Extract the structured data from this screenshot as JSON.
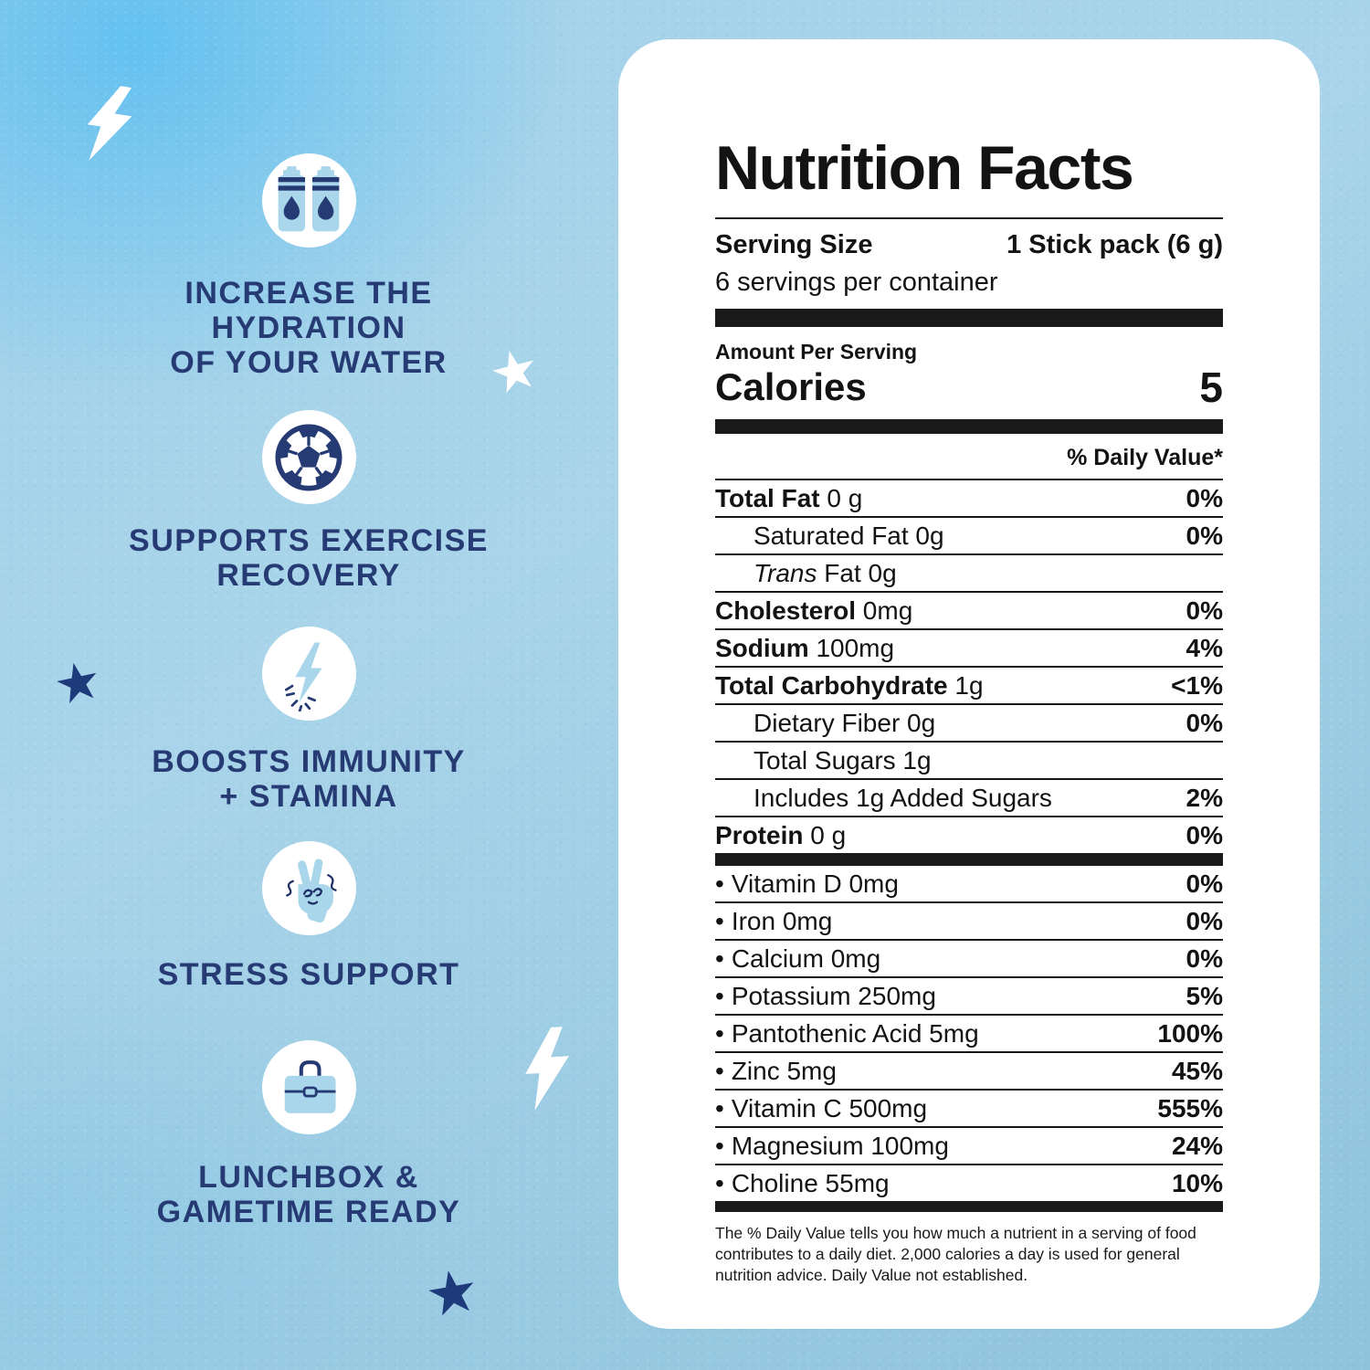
{
  "colors": {
    "background_blue": "#a6d2e8",
    "panel_white": "#ffffff",
    "navy": "#263a73",
    "label_black": "#131313",
    "icon_light_blue": "#a9d6ea"
  },
  "benefits": {
    "items": [
      {
        "icon": "water-bottles",
        "label": "INCREASE THE\nHYDRATION\nOF YOUR WATER"
      },
      {
        "icon": "soccer-ball",
        "label": "SUPPORTS EXERCISE\nRECOVERY"
      },
      {
        "icon": "lightning-bolt",
        "label": "BOOSTS IMMUNITY\n+ STAMINA"
      },
      {
        "icon": "peace-hand",
        "label": "STRESS SUPPORT"
      },
      {
        "icon": "lunchbox",
        "label": "LUNCHBOX &\nGAMETIME READY"
      }
    ]
  },
  "label": {
    "title": "Nutrition Facts",
    "serving_size_label": "Serving Size",
    "serving_size_value": "1 Stick pack (6 g)",
    "servings_per_container": "6 servings per container",
    "amount_per_serving": "Amount Per Serving",
    "calories_label": "Calories",
    "calories_value": "5",
    "daily_value_header": "% Daily Value*",
    "bullet": "•",
    "rows": [
      {
        "name": "Total Fat",
        "amount": "0 g",
        "dv": "0%",
        "bold_name": true,
        "indent": 0
      },
      {
        "name": "Saturated Fat",
        "amount": "0g",
        "dv": "0%",
        "bold_name": false,
        "indent": 1
      },
      {
        "name": "Trans Fat",
        "amount": "0g",
        "dv": "",
        "bold_name": false,
        "indent": 1,
        "italic_first_word": true
      },
      {
        "name": "Cholesterol",
        "amount": "0mg",
        "dv": "0%",
        "bold_name": true,
        "indent": 0
      },
      {
        "name": "Sodium",
        "amount": "100mg",
        "dv": "4%",
        "bold_name": true,
        "indent": 0
      },
      {
        "name": "Total Carbohydrate",
        "amount": "1g",
        "dv": "<1%",
        "bold_name": true,
        "indent": 0
      },
      {
        "name": "Dietary Fiber",
        "amount": "0g",
        "dv": "0%",
        "bold_name": false,
        "indent": 1
      },
      {
        "name": "Total Sugars",
        "amount": "1g",
        "dv": "",
        "bold_name": false,
        "indent": 1
      },
      {
        "name": "Includes 1g Added Sugars",
        "amount": "",
        "dv": "2%",
        "bold_name": false,
        "indent": 1
      },
      {
        "name": "Protein",
        "amount": "0 g",
        "dv": "0%",
        "bold_name": true,
        "indent": 0
      }
    ],
    "micronutrients": [
      {
        "name": "Vitamin D",
        "amount": "0mg",
        "dv": "0%"
      },
      {
        "name": "Iron",
        "amount": "0mg",
        "dv": "0%"
      },
      {
        "name": "Calcium",
        "amount": "0mg",
        "dv": "0%"
      },
      {
        "name": "Potassium",
        "amount": "250mg",
        "dv": "5%"
      },
      {
        "name": "Pantothenic Acid",
        "amount": "5mg",
        "dv": "100%"
      },
      {
        "name": "Zinc",
        "amount": "5mg",
        "dv": "45%"
      },
      {
        "name": "Vitamin C",
        "amount": "500mg",
        "dv": "555%"
      },
      {
        "name": "Magnesium",
        "amount": "100mg",
        "dv": "24%"
      },
      {
        "name": "Choline",
        "amount": "55mg",
        "dv": "10%"
      }
    ],
    "footnote": "The % Daily Value tells you how much a nutrient in a serving of food contributes to a daily diet. 2,000 calories a day is used for general nutrition advice. Daily Value not established."
  }
}
